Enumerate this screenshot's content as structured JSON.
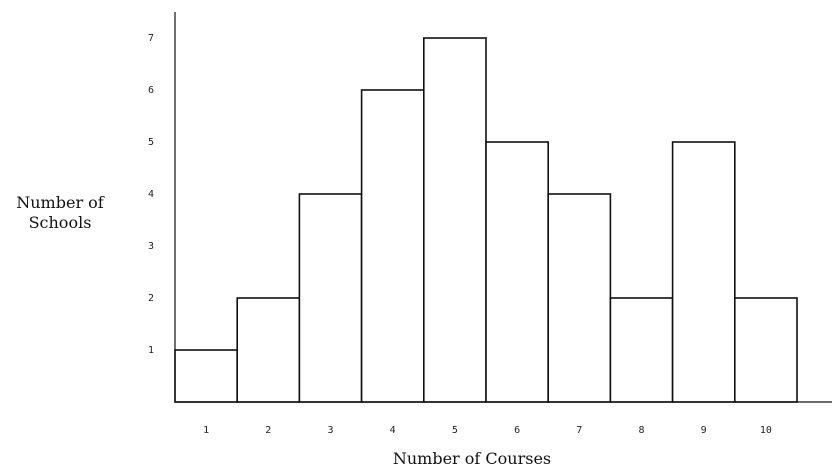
{
  "chart_data": {
    "type": "bar",
    "categories": [
      "1",
      "2",
      "3",
      "4",
      "5",
      "6",
      "7",
      "8",
      "9",
      "10"
    ],
    "values": [
      1,
      2,
      4,
      6,
      7,
      5,
      4,
      2,
      5,
      2
    ],
    "xlabel": "Number of Courses",
    "ylabel_line1": "Number of",
    "ylabel_line2": "Schools",
    "yticks": [
      "1",
      "2",
      "3",
      "4",
      "5",
      "6",
      "7"
    ],
    "ylim": [
      0,
      7
    ],
    "grid": false
  }
}
